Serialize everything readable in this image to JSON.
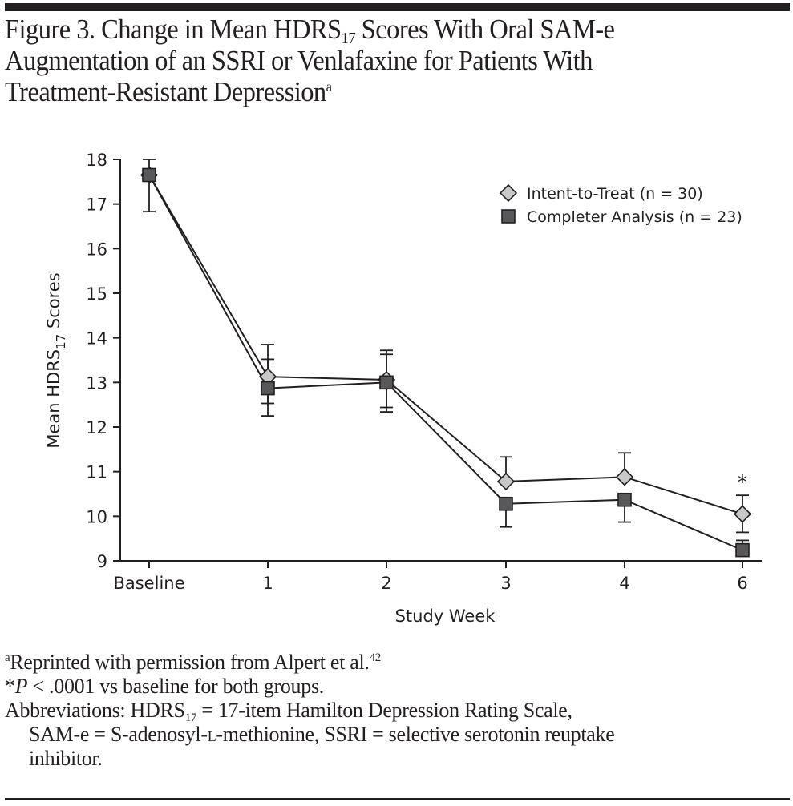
{
  "figure": {
    "title_line1_pre": "Figure 3. Change in Mean HDRS",
    "title_line1_sub": "17",
    "title_line1_post": " Scores With Oral SAM-e",
    "title_line2": "Augmentation of an SSRI or Venlafaxine for Patients With",
    "title_line3": "Treatment-Resistant Depression",
    "title_line3_sup": "a"
  },
  "chart_data": {
    "type": "line",
    "xlabel": "Study Week",
    "ylabel_pre": "Mean HDRS",
    "ylabel_sub": "17",
    "ylabel_post": " Scores",
    "categories": [
      "Baseline",
      "1",
      "2",
      "3",
      "4",
      "6"
    ],
    "ylim": [
      9,
      18
    ],
    "yticks": [
      9,
      10,
      11,
      12,
      13,
      14,
      15,
      16,
      17,
      18
    ],
    "grid": false,
    "legend_position": "top-right",
    "annotations": [
      {
        "category": "6",
        "text": "*"
      }
    ],
    "series": [
      {
        "name": "Intent-to-Treat (n = 30)",
        "marker": "diamond",
        "color": "#c8c8c8",
        "values": [
          17.65,
          13.13,
          13.06,
          10.78,
          10.88,
          10.05
        ],
        "err_up": [
          0.35,
          0.72,
          0.66,
          0.55,
          0.54,
          0.42
        ],
        "err_down": [
          null,
          0.6,
          0.62,
          null,
          null,
          0.41
        ]
      },
      {
        "name": "Completer Analysis (n = 23)",
        "marker": "square",
        "color": "#58585a",
        "values": [
          17.65,
          12.87,
          13.0,
          10.28,
          10.37,
          9.24
        ],
        "err_up": [
          null,
          0.65,
          0.63,
          null,
          null,
          0.22
        ],
        "err_down": [
          0.82,
          0.62,
          0.66,
          0.52,
          0.5,
          null
        ]
      }
    ]
  },
  "notes": {
    "note_a_sup": "a",
    "note_a_text": "Reprinted with permission from Alpert et al.",
    "note_a_ref": "42",
    "note_star_symbol": "*",
    "note_star_p": "P",
    "note_star_text": " < .0001 vs baseline for both groups.",
    "abbr_pre": "Abbreviations: HDRS",
    "abbr_sub": "17",
    "abbr_line1_post": " = 17-item Hamilton Depression Rating Scale,",
    "abbr_line2_pre": "SAM-e = S-adenosyl-",
    "abbr_line2_sc": "l",
    "abbr_line2_post": "-methionine, SSRI = selective serotonin reuptake",
    "abbr_line3": "inhibitor."
  }
}
